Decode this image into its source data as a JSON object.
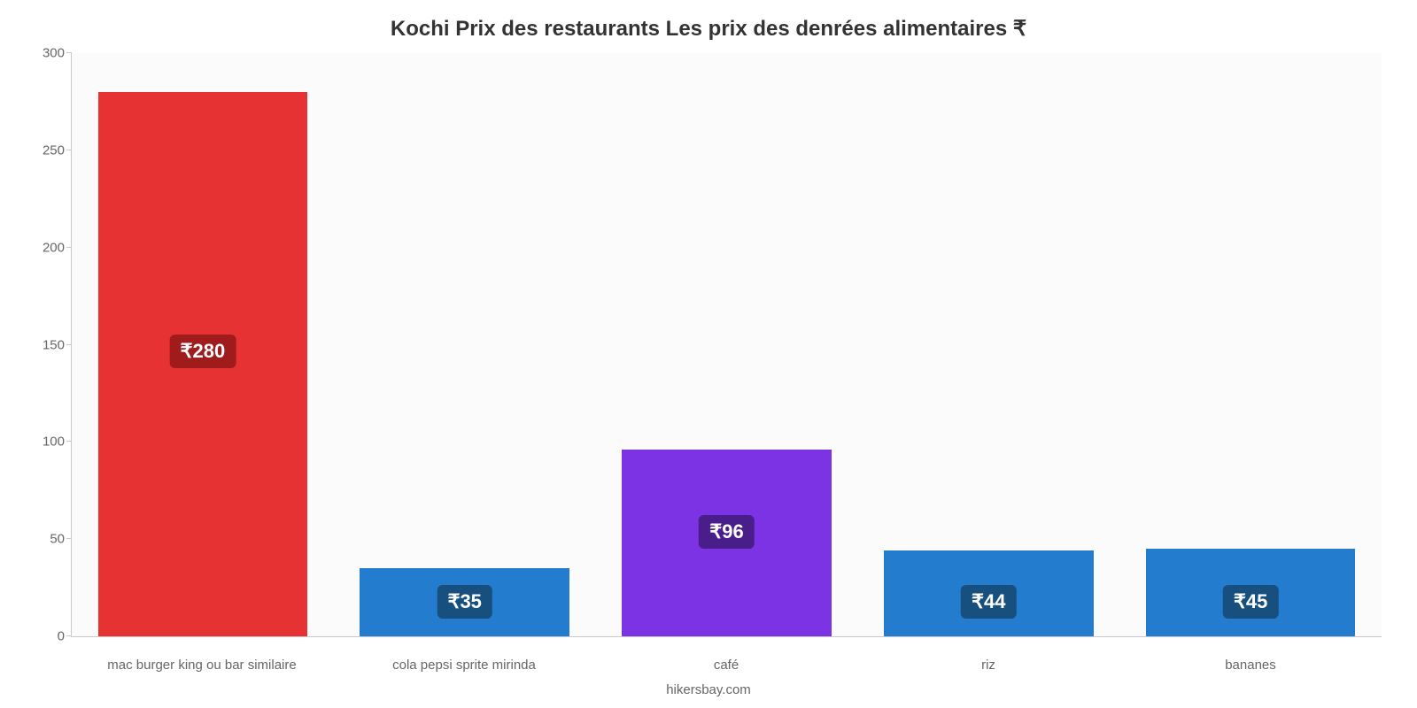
{
  "chart": {
    "type": "bar",
    "title": "Kochi Prix des restaurants Les prix des denrées alimentaires ₹",
    "title_fontsize": 24,
    "title_color": "#333333",
    "credit": "hikersbay.com",
    "credit_fontsize": 15,
    "credit_color": "#666666",
    "background_color": "#ffffff",
    "plot_background_color": "#fbfbfb",
    "axis_color": "#c9c9c9",
    "ylim": [
      0,
      300
    ],
    "ytick_step": 50,
    "ytick_labels": [
      "0",
      "50",
      "100",
      "150",
      "200",
      "250",
      "300"
    ],
    "ytick_fontsize": 15,
    "ytick_color": "#666666",
    "xlabel_fontsize": 15,
    "xlabel_color": "#666666",
    "bar_width_pct": 80,
    "value_label_fontsize": 22,
    "categories": [
      "mac burger king ou bar similaire",
      "cola pepsi sprite mirinda",
      "café",
      "riz",
      "bananes"
    ],
    "values": [
      280,
      35,
      96,
      44,
      45
    ],
    "value_labels": [
      "₹280",
      "₹35",
      "₹96",
      "₹44",
      "₹45"
    ],
    "bar_colors": [
      "#e63232",
      "#247cce",
      "#7b33e3",
      "#247cce",
      "#247cce"
    ],
    "label_bg_colors": [
      "#a01c1c",
      "#174f7e",
      "#4a1e8a",
      "#174f7e",
      "#174f7e"
    ],
    "label_offsets_pct": [
      46,
      3,
      15,
      3,
      3
    ]
  }
}
